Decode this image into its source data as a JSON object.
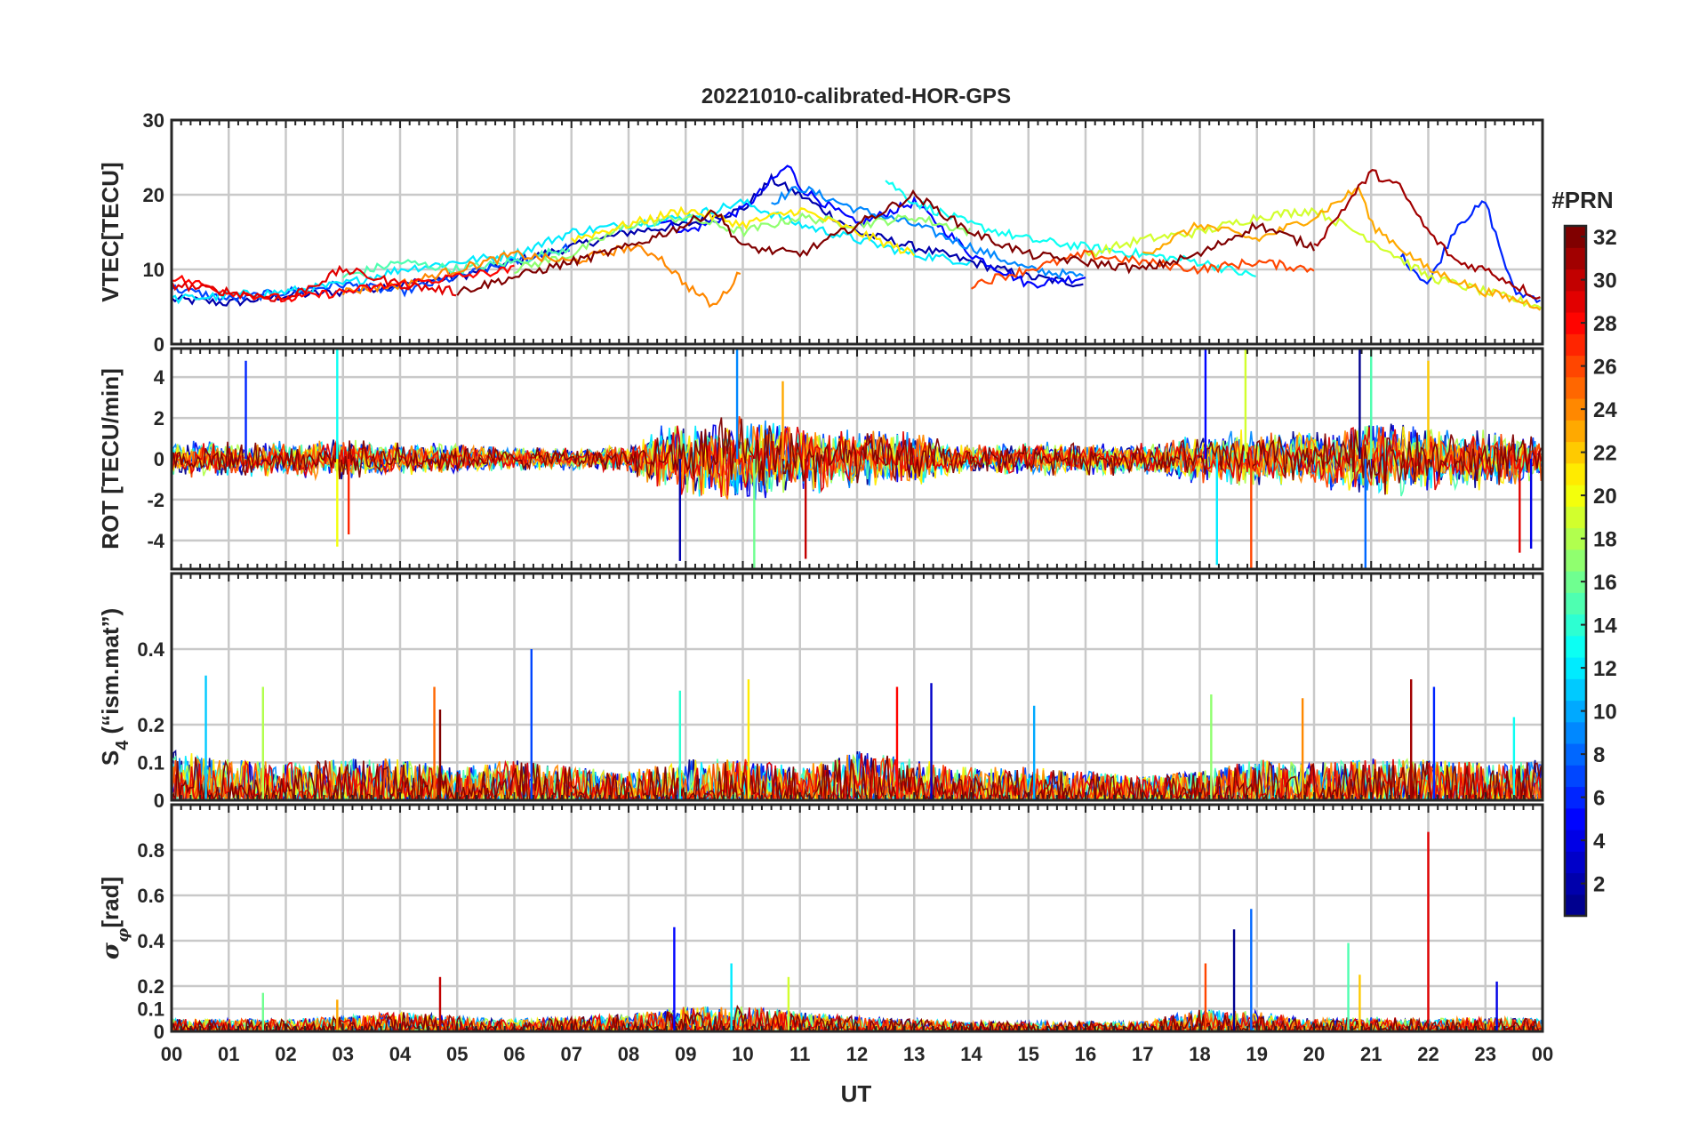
{
  "chart_data": {
    "type": "line",
    "title": "20221010-calibrated-HOR-GPS",
    "xlabel": "UT",
    "x_ticks": [
      "00",
      "01",
      "02",
      "03",
      "04",
      "05",
      "06",
      "07",
      "08",
      "09",
      "10",
      "11",
      "12",
      "13",
      "14",
      "15",
      "16",
      "17",
      "18",
      "19",
      "20",
      "21",
      "22",
      "23",
      "00"
    ],
    "xlim": [
      0,
      24
    ],
    "colorbar": {
      "title": "#PRN",
      "range": [
        1,
        32
      ],
      "ticks": [
        "2",
        "4",
        "6",
        "8",
        "10",
        "12",
        "14",
        "16",
        "18",
        "20",
        "22",
        "24",
        "26",
        "28",
        "30",
        "32"
      ],
      "tick_values": [
        2,
        4,
        6,
        8,
        10,
        12,
        14,
        16,
        18,
        20,
        22,
        24,
        26,
        28,
        30,
        32
      ],
      "colormap": [
        "#00008f",
        "#0000ff",
        "#0080ff",
        "#00ffff",
        "#80ff80",
        "#ffff00",
        "#ff8000",
        "#ff0000",
        "#800000"
      ]
    },
    "panels": [
      {
        "ylabel": "VTEC[TECU]",
        "ylim": [
          0,
          30
        ],
        "y_ticks": [
          "0",
          "10",
          "20",
          "30"
        ],
        "y_tick_values": [
          0,
          10,
          20,
          30
        ],
        "series": [
          {
            "prn": 2,
            "x": [
              0,
              1,
              2,
              3,
              4,
              5,
              6,
              7,
              8,
              9,
              10,
              10.5,
              11,
              12,
              13,
              14,
              15,
              16
            ],
            "y": [
              6,
              5.5,
              6.5,
              7,
              8,
              9,
              11,
              13,
              15,
              16,
              18,
              22,
              20,
              15,
              13,
              11,
              9,
              8
            ]
          },
          {
            "prn": 5,
            "x": [
              8.5,
              9,
              10,
              10.8,
              11,
              12,
              13,
              14,
              15,
              16
            ],
            "y": [
              17,
              15,
              18,
              24,
              21,
              16,
              19,
              12,
              8,
              9
            ]
          },
          {
            "prn": 9,
            "x": [
              10.5,
              11,
              12,
              13,
              14,
              15,
              16
            ],
            "y": [
              19,
              21,
              18,
              16,
              13,
              10,
              9
            ]
          },
          {
            "prn": 6,
            "x": [
              21.5,
              22,
              22.5,
              23,
              23.5,
              24
            ],
            "y": [
              12,
              8,
              16,
              19,
              7,
              6
            ]
          },
          {
            "prn": 7,
            "x": [
              0,
              1,
              2,
              3,
              4,
              5,
              6,
              7
            ],
            "y": [
              7.5,
              6,
              7,
              8,
              7,
              9,
              11,
              13
            ]
          },
          {
            "prn": 12,
            "x": [
              0,
              1,
              2,
              3,
              4,
              5,
              6,
              7,
              8,
              9,
              10,
              11,
              12,
              13,
              14
            ],
            "y": [
              6,
              6.5,
              7,
              8,
              10,
              11,
              12,
              15,
              16,
              17,
              19,
              16,
              14,
              12,
              11
            ]
          },
          {
            "prn": 13,
            "x": [
              12.5,
              13,
              14,
              15,
              16,
              17,
              18,
              19
            ],
            "y": [
              22,
              19,
              16,
              14,
              13,
              12,
              11,
              9
            ]
          },
          {
            "prn": 15,
            "x": [
              3,
              4,
              5,
              6,
              7
            ],
            "y": [
              9,
              11,
              10,
              11,
              13
            ]
          },
          {
            "prn": 17,
            "x": [
              6,
              7,
              8,
              9,
              10,
              11,
              12,
              13,
              14
            ],
            "y": [
              10,
              12,
              16,
              17,
              15,
              17,
              16,
              17,
              15
            ]
          },
          {
            "prn": 19,
            "x": [
              16,
              17,
              18,
              19,
              20,
              21,
              22,
              23,
              24
            ],
            "y": [
              12,
              14,
              15,
              17,
              18,
              14,
              9,
              7,
              5
            ]
          },
          {
            "prn": 21,
            "x": [
              7,
              8,
              9,
              10,
              11,
              12,
              13
            ],
            "y": [
              14,
              16,
              18,
              16,
              18,
              15,
              12
            ]
          },
          {
            "prn": 23,
            "x": [
              17,
              18,
              19,
              20,
              20.8,
              21,
              22,
              23,
              24
            ],
            "y": [
              12,
              16,
              14,
              17,
              21,
              16,
              10,
              7,
              5
            ]
          },
          {
            "prn": 24,
            "x": [
              3,
              4,
              5,
              6,
              7,
              8,
              8.5,
              9,
              9.5,
              10
            ],
            "y": [
              7,
              8,
              10,
              12,
              11,
              13,
              12,
              8,
              5,
              10
            ]
          },
          {
            "prn": 26,
            "x": [
              14,
              15,
              16,
              17,
              18,
              19,
              20
            ],
            "y": [
              8,
              10,
              12,
              11,
              10,
              11,
              10
            ]
          },
          {
            "prn": 28,
            "x": [
              0,
              1,
              2,
              3,
              4,
              5,
              6
            ],
            "y": [
              9,
              7,
              6,
              7,
              8,
              9,
              10
            ]
          },
          {
            "prn": 29,
            "x": [
              0,
              1,
              2,
              3,
              4,
              5
            ],
            "y": [
              8,
              7,
              6,
              10,
              8,
              7
            ]
          },
          {
            "prn": 31,
            "x": [
              20,
              20.5,
              21,
              21.5,
              22,
              22.5,
              23,
              24
            ],
            "y": [
              13,
              18,
              23,
              21,
              15,
              11,
              10,
              6
            ]
          },
          {
            "prn": 32,
            "x": [
              5,
              6,
              7,
              8,
              9,
              9.5,
              10,
              11,
              12,
              13,
              14,
              15,
              16,
              17,
              18,
              19,
              20
            ],
            "y": [
              7,
              9,
              11,
              13,
              16,
              18,
              13,
              12,
              16,
              20,
              15,
              12,
              11,
              10,
              12,
              16,
              13
            ]
          }
        ]
      },
      {
        "ylabel": "ROT [TECU/min]",
        "ylim": [
          -5.4,
          5.4
        ],
        "y_ticks": [
          "-4",
          "-2",
          "0",
          "2",
          "4"
        ],
        "y_tick_values": [
          -4,
          -2,
          0,
          2,
          4
        ],
        "envelope": {
          "x": [
            0,
            1,
            2,
            3,
            4,
            5,
            6,
            7,
            8,
            8.5,
            9,
            10,
            11,
            12,
            13,
            14,
            15,
            16,
            17,
            18,
            19,
            20,
            21,
            22,
            23,
            24
          ],
          "amp": [
            1.0,
            0.9,
            0.9,
            1.1,
            0.9,
            0.8,
            0.6,
            0.6,
            0.7,
            1.6,
            2.0,
            2.3,
            1.9,
            1.5,
            1.5,
            0.7,
            0.9,
            0.9,
            0.8,
            1.3,
            1.6,
            1.4,
            2.0,
            1.7,
            1.6,
            1.2
          ]
        },
        "spikes": [
          [
            1.3,
            4.8
          ],
          [
            2.9,
            5.4
          ],
          [
            2.9,
            -4.3
          ],
          [
            3.1,
            -3.7
          ],
          [
            8.9,
            -5.0
          ],
          [
            9.9,
            5.4
          ],
          [
            10.2,
            -5.4
          ],
          [
            10.7,
            3.8
          ],
          [
            11.1,
            -4.9
          ],
          [
            18.1,
            5.4
          ],
          [
            18.3,
            -5.2
          ],
          [
            18.8,
            5.4
          ],
          [
            18.9,
            -5.4
          ],
          [
            20.8,
            5.4
          ],
          [
            20.9,
            -5.4
          ],
          [
            21.0,
            5.4
          ],
          [
            22.0,
            4.8
          ],
          [
            23.6,
            -4.6
          ],
          [
            23.8,
            -4.4
          ]
        ]
      },
      {
        "ylabel": "S4 (\"ism.mat\")",
        "ylim": [
          0,
          0.6
        ],
        "y_ticks": [
          "0",
          "0.1",
          "0.2",
          "0.4"
        ],
        "y_tick_values": [
          0,
          0.1,
          0.2,
          0.4
        ],
        "envelope": {
          "x": [
            0,
            1,
            2,
            3,
            4,
            5,
            6,
            7,
            8,
            9,
            10,
            11,
            12,
            13,
            14,
            15,
            16,
            17,
            18,
            19,
            20,
            21,
            22,
            23,
            24
          ],
          "amp": [
            0.12,
            0.1,
            0.09,
            0.1,
            0.1,
            0.08,
            0.1,
            0.08,
            0.07,
            0.1,
            0.1,
            0.08,
            0.12,
            0.1,
            0.08,
            0.08,
            0.07,
            0.06,
            0.07,
            0.1,
            0.09,
            0.1,
            0.1,
            0.09,
            0.1
          ]
        },
        "spikes": [
          [
            0.6,
            0.33
          ],
          [
            1.6,
            0.3
          ],
          [
            4.6,
            0.3
          ],
          [
            4.7,
            0.24
          ],
          [
            6.3,
            0.4
          ],
          [
            8.9,
            0.29
          ],
          [
            10.1,
            0.32
          ],
          [
            12.7,
            0.3
          ],
          [
            13.3,
            0.31
          ],
          [
            15.1,
            0.25
          ],
          [
            18.2,
            0.28
          ],
          [
            19.8,
            0.27
          ],
          [
            21.7,
            0.32
          ],
          [
            22.1,
            0.3
          ],
          [
            23.5,
            0.22
          ]
        ]
      },
      {
        "ylabel": "σφ[rad]",
        "ylim": [
          0,
          1.0
        ],
        "y_ticks": [
          "0",
          "0.1",
          "0.2",
          "0.4",
          "0.6",
          "0.8"
        ],
        "y_tick_values": [
          0,
          0.1,
          0.2,
          0.4,
          0.6,
          0.8
        ],
        "envelope": {
          "x": [
            0,
            1,
            2,
            3,
            4,
            5,
            6,
            7,
            8,
            9,
            10,
            11,
            12,
            13,
            14,
            15,
            16,
            17,
            18,
            19,
            20,
            21,
            22,
            23,
            24
          ],
          "amp": [
            0.05,
            0.05,
            0.05,
            0.06,
            0.08,
            0.06,
            0.05,
            0.06,
            0.07,
            0.1,
            0.1,
            0.08,
            0.06,
            0.05,
            0.04,
            0.04,
            0.04,
            0.04,
            0.09,
            0.08,
            0.05,
            0.06,
            0.05,
            0.06,
            0.05
          ]
        },
        "spikes": [
          [
            1.6,
            0.17
          ],
          [
            2.9,
            0.14
          ],
          [
            4.7,
            0.24
          ],
          [
            8.8,
            0.46
          ],
          [
            9.8,
            0.3
          ],
          [
            10.8,
            0.24
          ],
          [
            18.1,
            0.3
          ],
          [
            18.6,
            0.45
          ],
          [
            18.9,
            0.54
          ],
          [
            20.6,
            0.39
          ],
          [
            20.8,
            0.25
          ],
          [
            22.0,
            0.88
          ],
          [
            23.2,
            0.22
          ]
        ]
      }
    ]
  }
}
